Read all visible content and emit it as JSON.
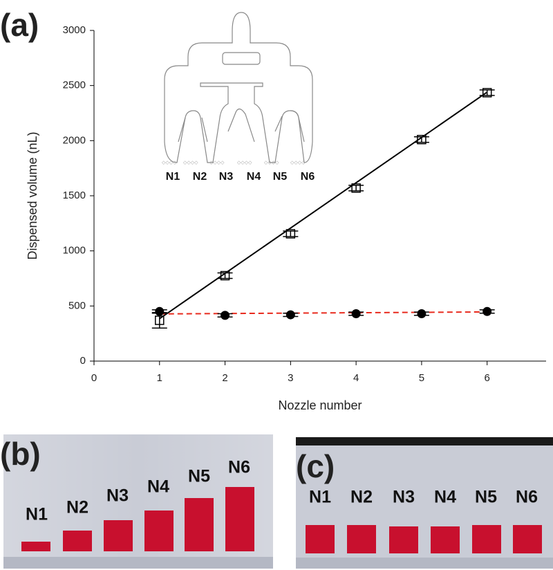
{
  "chart_data": {
    "type": "scatter",
    "panel_label": "(a)",
    "x_label": "Nozzle number",
    "y_label": "Dispensed volume (nL)",
    "x": [
      1,
      2,
      3,
      4,
      5,
      6
    ],
    "series": [
      {
        "marker": "square-open",
        "color": "#000000",
        "values": [
          370,
          775,
          1155,
          1570,
          2010,
          2435
        ],
        "errors": [
          70,
          25,
          25,
          25,
          25,
          25
        ]
      },
      {
        "marker": "circle",
        "color": "#000000",
        "values": [
          450,
          415,
          420,
          430,
          430,
          450
        ],
        "errors": [
          15,
          15,
          15,
          15,
          15,
          15
        ]
      }
    ],
    "fits": [
      {
        "color": "#000000",
        "dashed": false,
        "x": [
          1,
          6
        ],
        "values": [
          385,
          2440
        ]
      },
      {
        "color": "#e8291c",
        "dashed": true,
        "x": [
          1,
          6
        ],
        "values": [
          428,
          446
        ]
      }
    ],
    "xlim": [
      0,
      6.9
    ],
    "ylim": [
      0,
      3000
    ],
    "xticks": [
      0,
      1,
      2,
      3,
      4,
      5,
      6
    ],
    "yticks": [
      0,
      500,
      1000,
      1500,
      2000,
      2500,
      3000
    ],
    "inset_labels": [
      "N1",
      "N2",
      "N3",
      "N4",
      "N5",
      "N6"
    ]
  },
  "photos": [
    {
      "label": "(b)",
      "tubes": [
        "N1",
        "N2",
        "N3",
        "N4",
        "N5",
        "N6"
      ]
    },
    {
      "label": "(c)",
      "tubes": [
        "N1",
        "N2",
        "N3",
        "N4",
        "N5",
        "N6"
      ]
    }
  ]
}
